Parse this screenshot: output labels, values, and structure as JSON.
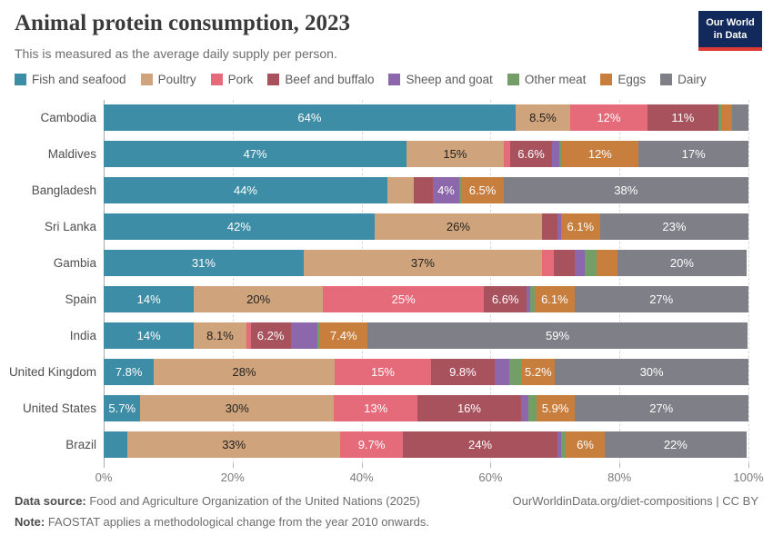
{
  "header": {
    "title": "Animal protein consumption, 2023",
    "subtitle": "This is measured as the average daily supply per person.",
    "logo_line1": "Our World",
    "logo_line2": "in Data",
    "logo_bg": "#12295c",
    "logo_accent": "#dc3a33"
  },
  "chart_data": {
    "type": "bar",
    "stacked": true,
    "orientation": "horizontal",
    "unit": "%",
    "xlim": [
      0,
      100
    ],
    "grid": "vertical-dashed",
    "legend_position": "top",
    "x_ticks": [
      "0%",
      "20%",
      "40%",
      "60%",
      "80%",
      "100%"
    ],
    "categories": [
      "Cambodia",
      "Maldives",
      "Bangladesh",
      "Sri Lanka",
      "Gambia",
      "Spain",
      "India",
      "United Kingdom",
      "United States",
      "Brazil"
    ],
    "series": [
      {
        "name": "Fish and seafood",
        "color": "#3d8da6",
        "dark_text": false,
        "values": [
          64,
          47,
          44,
          42,
          31,
          14,
          14,
          7.8,
          5.7,
          3.7
        ],
        "labels": [
          "64%",
          "47%",
          "44%",
          "42%",
          "31%",
          "14%",
          "14%",
          "7.8%",
          "5.7%",
          ""
        ]
      },
      {
        "name": "Poultry",
        "color": "#cfa47c",
        "dark_text": true,
        "values": [
          8.5,
          15,
          4.1,
          26,
          37,
          20,
          8.1,
          28,
          30,
          33
        ],
        "labels": [
          "8.5%",
          "15%",
          "",
          "26%",
          "37%",
          "20%",
          "8.1%",
          "28%",
          "30%",
          "33%"
        ]
      },
      {
        "name": "Pork",
        "color": "#e56a7a",
        "dark_text": false,
        "values": [
          12,
          1.0,
          0,
          0,
          1.8,
          25,
          0.7,
          15,
          13,
          9.7
        ],
        "labels": [
          "12%",
          "",
          "",
          "",
          "",
          "25%",
          "",
          "15%",
          "13%",
          "9.7%"
        ]
      },
      {
        "name": "Beef and buffalo",
        "color": "#a8525e",
        "dark_text": false,
        "values": [
          11,
          6.6,
          3.0,
          2.4,
          3.3,
          6.6,
          6.2,
          9.8,
          16,
          24
        ],
        "labels": [
          "11%",
          "6.6%",
          "",
          "",
          "",
          "6.6%",
          "6.2%",
          "9.8%",
          "16%",
          "24%"
        ]
      },
      {
        "name": "Sheep and goat",
        "color": "#8d67ab",
        "dark_text": false,
        "values": [
          0,
          1.0,
          4,
          0.5,
          1.5,
          0.5,
          4.1,
          2.3,
          1.2,
          0.6
        ],
        "labels": [
          "",
          "",
          "4%",
          "",
          "",
          "",
          "",
          "",
          "",
          ""
        ]
      },
      {
        "name": "Other meat",
        "color": "#749e67",
        "dark_text": false,
        "values": [
          0.4,
          0.4,
          0.4,
          0,
          1.9,
          0.8,
          0.4,
          1.9,
          1.2,
          0.7
        ],
        "labels": [
          "",
          "",
          "",
          "",
          "",
          "",
          "",
          "",
          "",
          ""
        ]
      },
      {
        "name": "Eggs",
        "color": "#c87e3d",
        "dark_text": false,
        "values": [
          1.8,
          12,
          6.5,
          6.1,
          3.2,
          6.1,
          7.4,
          5.2,
          5.9,
          6
        ],
        "labels": [
          "",
          "12%",
          "6.5%",
          "6.1%",
          "",
          "6.1%",
          "7.4%",
          "5.2%",
          "5.9%",
          "6%"
        ]
      },
      {
        "name": "Dairy",
        "color": "#7f7f88",
        "dark_text": false,
        "values": [
          2.5,
          17,
          38,
          23,
          20,
          27,
          59,
          30,
          27,
          22
        ],
        "labels": [
          "",
          "17%",
          "38%",
          "23%",
          "20%",
          "27%",
          "59%",
          "30%",
          "27%",
          "22%"
        ]
      }
    ]
  },
  "footer": {
    "source_label": "Data source:",
    "source_text": " Food and Agriculture Organization of the United Nations (2025)",
    "link": "OurWorldinData.org/diet-compositions | CC BY",
    "note_label": "Note:",
    "note_text": " FAOSTAT applies a methodological change from the year 2010 onwards."
  }
}
